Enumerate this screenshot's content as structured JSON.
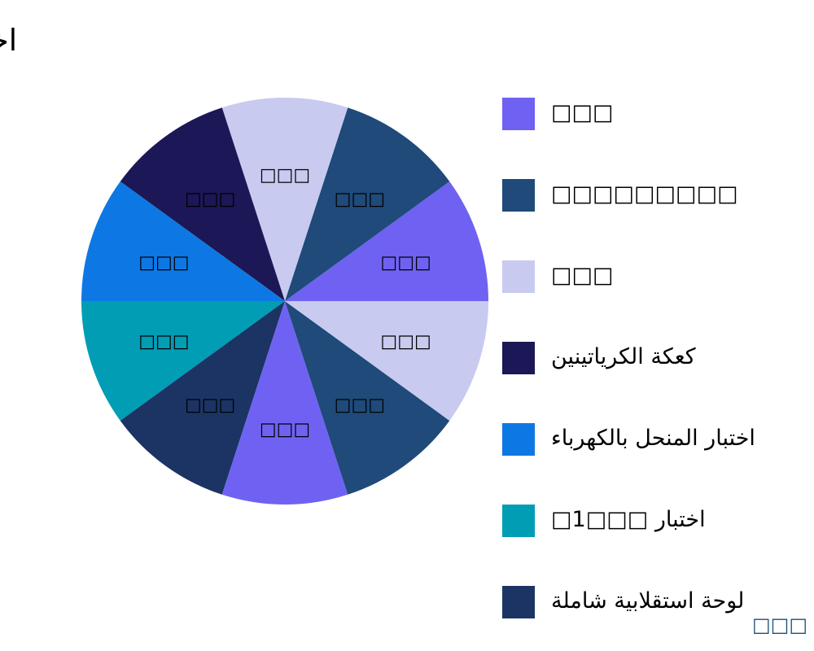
{
  "chart_data": {
    "type": "pie",
    "title": "اختبار المختبر السريري تحليل السوق حسب النوع",
    "slices": [
      {
        "label": "□□□",
        "value": 10,
        "color": "#6f62f2"
      },
      {
        "label": "□□□",
        "value": 10,
        "color": "#1f4a7a"
      },
      {
        "label": "□□□",
        "value": 10,
        "color": "#c9caf0"
      },
      {
        "label": "□□□",
        "value": 10,
        "color": "#1c1756"
      },
      {
        "label": "□□□",
        "value": 10,
        "color": "#0d78e3"
      },
      {
        "label": "□□□",
        "value": 10,
        "color": "#009db5"
      },
      {
        "label": "□□□",
        "value": 10,
        "color": "#1b3464"
      },
      {
        "label": "□□□",
        "value": 10,
        "color": "#6f62f2"
      },
      {
        "label": "□□□",
        "value": 10,
        "color": "#1f4a7a"
      },
      {
        "label": "□□□",
        "value": 10,
        "color": "#c9caf0"
      }
    ],
    "legend": {
      "placement": "right",
      "entries": [
        {
          "label": "□□□",
          "color": "#6f62f2"
        },
        {
          "label": "□□□□□□□□□",
          "color": "#1f4a7a"
        },
        {
          "label": "□□□",
          "color": "#c9caf0"
        },
        {
          "label": "كعكة الكرياتينين",
          "color": "#1c1756"
        },
        {
          "label": "اختبار المنحل بالكهرباء",
          "color": "#0d78e3"
        },
        {
          "label": "اختبار □□□1□",
          "color": "#009db5"
        },
        {
          "label": "لوحة استقلابية شاملة",
          "color": "#1b3464"
        }
      ]
    }
  },
  "footer": {
    "text": "□□□"
  }
}
